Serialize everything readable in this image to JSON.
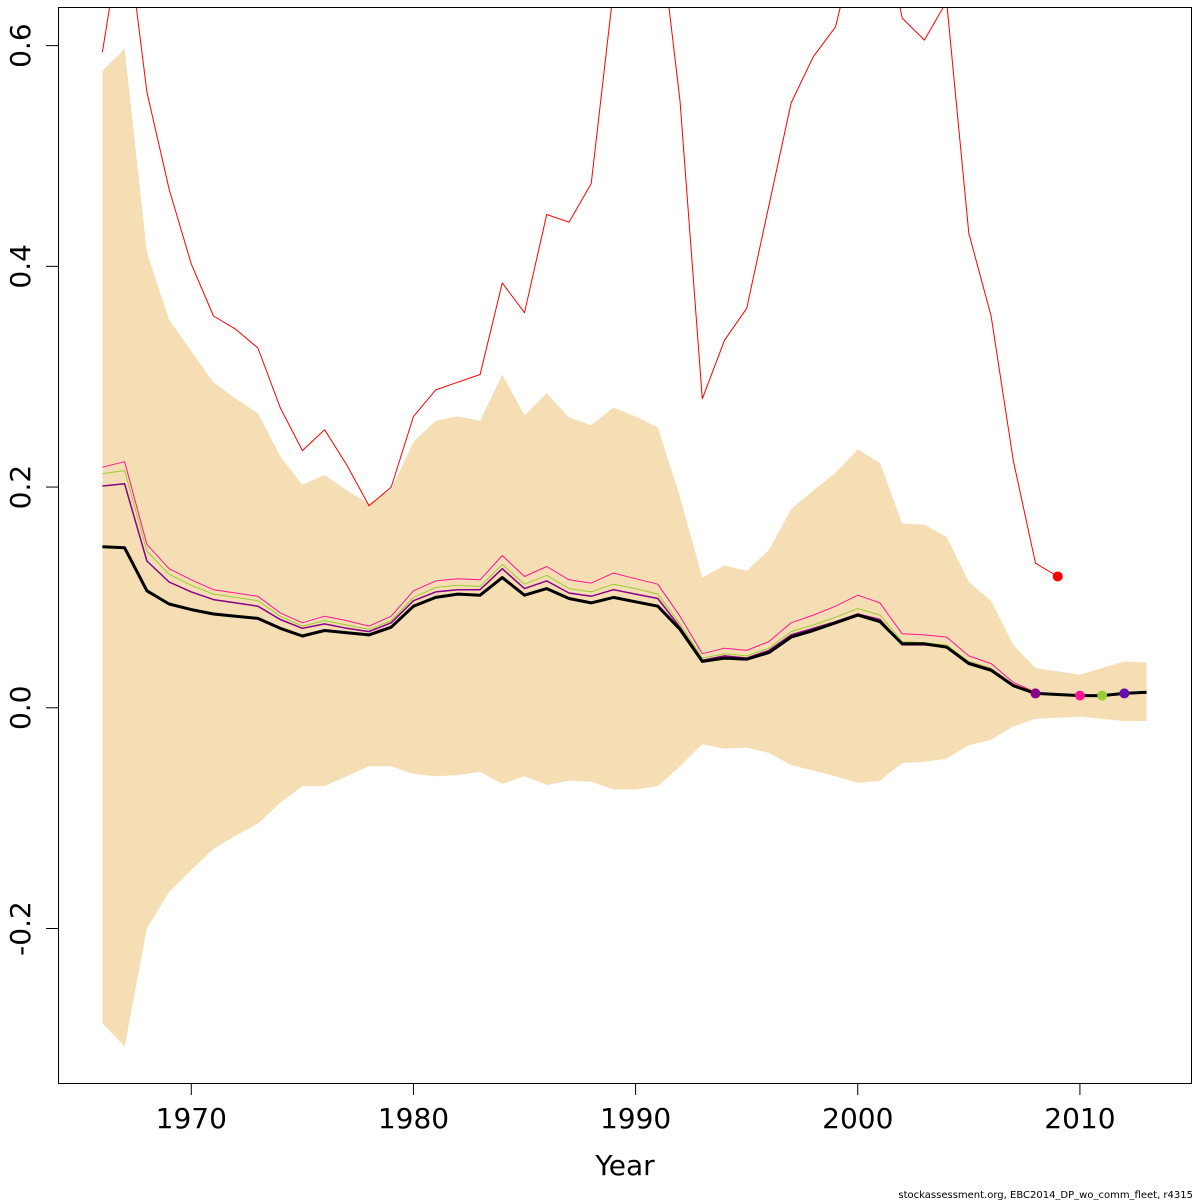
{
  "chart_data": {
    "type": "line",
    "xlabel": "Year",
    "ylabel": "",
    "xlim": [
      1964.0,
      2015.0
    ],
    "ylim": [
      -0.34,
      0.635
    ],
    "x_ticks": [
      "1970",
      "1980",
      "1990",
      "2000",
      "2010"
    ],
    "x_tick_values": [
      1970,
      1980,
      1990,
      2000,
      2010
    ],
    "y_ticks": [
      "-0.2",
      "0.0",
      "0.2",
      "0.4",
      "0.6"
    ],
    "y_tick_values": [
      -0.2,
      0.0,
      0.2,
      0.4,
      0.6
    ],
    "grid": false,
    "legend": "none",
    "credit": "stockassessment.org, EBC2014_DP_wo_comm_fleet, r4315",
    "band": {
      "color": "#F5DEB3",
      "x": [
        1966,
        1967,
        1968,
        1969,
        1970,
        1971,
        1972,
        1973,
        1974,
        1975,
        1976,
        1977,
        1978,
        1979,
        1980,
        1981,
        1982,
        1983,
        1984,
        1985,
        1986,
        1987,
        1988,
        1989,
        1990,
        1991,
        1992,
        1993,
        1994,
        1995,
        1996,
        1997,
        1998,
        1999,
        2000,
        2001,
        2002,
        2003,
        2004,
        2005,
        2006,
        2007,
        2008,
        2009,
        2010,
        2011,
        2012,
        2013
      ],
      "upper": [
        0.577,
        0.597,
        0.413,
        0.352,
        0.323,
        0.295,
        0.28,
        0.267,
        0.228,
        0.202,
        0.211,
        0.197,
        0.185,
        0.198,
        0.241,
        0.26,
        0.264,
        0.26,
        0.302,
        0.265,
        0.285,
        0.263,
        0.256,
        0.272,
        0.264,
        0.254,
        0.191,
        0.118,
        0.129,
        0.124,
        0.143,
        0.18,
        0.197,
        0.213,
        0.234,
        0.222,
        0.167,
        0.166,
        0.155,
        0.114,
        0.097,
        0.057,
        0.036,
        0.033,
        0.03,
        0.036,
        0.042,
        0.041
      ],
      "lower": [
        -0.286,
        -0.307,
        -0.2,
        -0.167,
        -0.147,
        -0.128,
        -0.116,
        -0.105,
        -0.086,
        -0.071,
        -0.071,
        -0.062,
        -0.053,
        -0.053,
        -0.06,
        -0.062,
        -0.061,
        -0.058,
        -0.069,
        -0.062,
        -0.07,
        -0.066,
        -0.067,
        -0.074,
        -0.074,
        -0.071,
        -0.053,
        -0.033,
        -0.037,
        -0.036,
        -0.041,
        -0.052,
        -0.057,
        -0.062,
        -0.068,
        -0.066,
        -0.05,
        -0.049,
        -0.046,
        -0.034,
        -0.029,
        -0.017,
        -0.01,
        -0.009,
        -0.008,
        -0.01,
        -0.012,
        -0.012
      ]
    },
    "series": [
      {
        "color": "#FF0000",
        "width": 1,
        "end_point": true,
        "x": [
          1966,
          1967,
          1968,
          1969,
          1970,
          1971,
          1972,
          1973,
          1974,
          1975,
          1976,
          1977,
          1978,
          1979,
          1980,
          1981,
          1982,
          1983,
          1984,
          1985,
          1986,
          1987,
          1988,
          1989,
          1990,
          1991,
          1992,
          1993,
          1994,
          1995,
          1996,
          1997,
          1998,
          1999,
          2000,
          2001,
          2002,
          2003,
          2004,
          2005,
          2006,
          2007,
          2008,
          2009
        ],
        "values": [
          0.594,
          0.72,
          0.558,
          0.47,
          0.402,
          0.355,
          0.343,
          0.326,
          0.272,
          0.233,
          0.252,
          0.22,
          0.183,
          0.2,
          0.264,
          0.288,
          0.295,
          0.302,
          0.385,
          0.358,
          0.447,
          0.44,
          0.475,
          0.65,
          0.7,
          0.72,
          0.55,
          0.28,
          0.333,
          0.362,
          0.455,
          0.548,
          0.59,
          0.617,
          0.7,
          0.72,
          0.625,
          0.605,
          0.64,
          0.43,
          0.355,
          0.224,
          0.131,
          0.119
        ]
      },
      {
        "color": "#FF1493",
        "width": 1,
        "end_point": true,
        "x": [
          1966,
          1967,
          1968,
          1969,
          1970,
          1971,
          1972,
          1973,
          1974,
          1975,
          1976,
          1977,
          1978,
          1979,
          1980,
          1981,
          1982,
          1983,
          1984,
          1985,
          1986,
          1987,
          1988,
          1989,
          1990,
          1991,
          1992,
          1993,
          1994,
          1995,
          1996,
          1997,
          1998,
          1999,
          2000,
          2001,
          2002,
          2003,
          2004,
          2005,
          2006,
          2007,
          2008,
          2009,
          2010
        ],
        "values": [
          0.218,
          0.223,
          0.148,
          0.126,
          0.116,
          0.107,
          0.104,
          0.101,
          0.086,
          0.077,
          0.083,
          0.079,
          0.074,
          0.083,
          0.106,
          0.115,
          0.117,
          0.116,
          0.138,
          0.119,
          0.128,
          0.116,
          0.113,
          0.122,
          0.117,
          0.112,
          0.083,
          0.049,
          0.054,
          0.052,
          0.06,
          0.077,
          0.084,
          0.092,
          0.102,
          0.095,
          0.067,
          0.066,
          0.064,
          0.047,
          0.04,
          0.023,
          0.014,
          0.012,
          0.011
        ]
      },
      {
        "color": "#9ACD32",
        "width": 1,
        "end_point": true,
        "x": [
          1966,
          1967,
          1968,
          1969,
          1970,
          1971,
          1972,
          1973,
          1974,
          1975,
          1976,
          1977,
          1978,
          1979,
          1980,
          1981,
          1982,
          1983,
          1984,
          1985,
          1986,
          1987,
          1988,
          1989,
          1990,
          1991,
          1992,
          1993,
          1994,
          1995,
          1996,
          1997,
          1998,
          1999,
          2000,
          2001,
          2002,
          2003,
          2004,
          2005,
          2006,
          2007,
          2008,
          2009,
          2010,
          2011
        ],
        "values": [
          0.212,
          0.215,
          0.142,
          0.121,
          0.111,
          0.103,
          0.1,
          0.097,
          0.083,
          0.074,
          0.079,
          0.075,
          0.071,
          0.079,
          0.1,
          0.109,
          0.111,
          0.11,
          0.13,
          0.112,
          0.12,
          0.108,
          0.105,
          0.112,
          0.108,
          0.103,
          0.076,
          0.045,
          0.049,
          0.047,
          0.054,
          0.069,
          0.075,
          0.082,
          0.09,
          0.084,
          0.06,
          0.059,
          0.057,
          0.042,
          0.036,
          0.021,
          0.013,
          0.012,
          0.011,
          0.011
        ]
      },
      {
        "color": "#8B008B",
        "width": 1.5,
        "end_point": true,
        "x": [
          1966,
          1967,
          1968,
          1969,
          1970,
          1971,
          1972,
          1973,
          1974,
          1975,
          1976,
          1977,
          1978,
          1979,
          1980,
          1981,
          1982,
          1983,
          1984,
          1985,
          1986,
          1987,
          1988,
          1989,
          1990,
          1991,
          1992,
          1993,
          1994,
          1995,
          1996,
          1997,
          1998,
          1999,
          2000,
          2001,
          2002,
          2003,
          2004,
          2005,
          2006,
          2007,
          2008
        ],
        "values": [
          0.201,
          0.203,
          0.133,
          0.114,
          0.105,
          0.098,
          0.095,
          0.092,
          0.08,
          0.072,
          0.076,
          0.072,
          0.069,
          0.077,
          0.097,
          0.105,
          0.107,
          0.107,
          0.126,
          0.108,
          0.115,
          0.104,
          0.101,
          0.107,
          0.103,
          0.099,
          0.073,
          0.043,
          0.047,
          0.045,
          0.052,
          0.066,
          0.072,
          0.078,
          0.085,
          0.08,
          0.057,
          0.057,
          0.055,
          0.041,
          0.035,
          0.021,
          0.013
        ]
      },
      {
        "color": "#000000",
        "width": 3,
        "end_point": false,
        "x": [
          1966,
          1967,
          1968,
          1969,
          1970,
          1971,
          1972,
          1973,
          1974,
          1975,
          1976,
          1977,
          1978,
          1979,
          1980,
          1981,
          1982,
          1983,
          1984,
          1985,
          1986,
          1987,
          1988,
          1989,
          1990,
          1991,
          1992,
          1993,
          1994,
          1995,
          1996,
          1997,
          1998,
          1999,
          2000,
          2001,
          2002,
          2003,
          2004,
          2005,
          2006,
          2007,
          2008,
          2009,
          2010,
          2011,
          2012,
          2013
        ],
        "values": [
          0.146,
          0.145,
          0.106,
          0.094,
          0.089,
          0.085,
          0.083,
          0.081,
          0.072,
          0.065,
          0.07,
          0.068,
          0.066,
          0.073,
          0.092,
          0.1,
          0.103,
          0.102,
          0.118,
          0.102,
          0.108,
          0.099,
          0.095,
          0.1,
          0.096,
          0.092,
          0.071,
          0.042,
          0.045,
          0.044,
          0.05,
          0.064,
          0.07,
          0.077,
          0.084,
          0.078,
          0.058,
          0.058,
          0.055,
          0.04,
          0.034,
          0.02,
          0.013,
          0.012,
          0.011,
          0.011,
          0.013,
          0.014
        ]
      }
    ],
    "points": [
      {
        "x": 2012,
        "y": 0.013,
        "color": "#6A0DAD"
      }
    ]
  }
}
